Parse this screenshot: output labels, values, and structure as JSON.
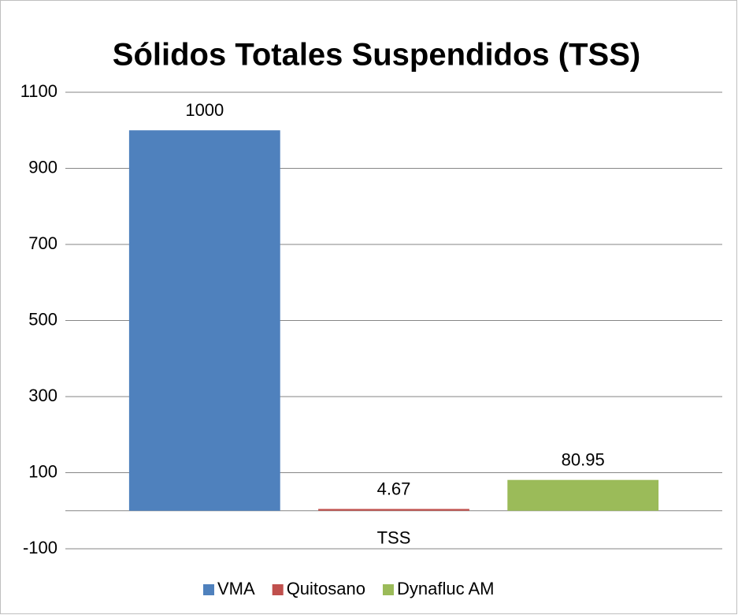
{
  "chart_data": {
    "type": "bar",
    "title": "Sólidos Totales Suspendidos (TSS)",
    "categories": [
      "TSS"
    ],
    "series": [
      {
        "name": "VMA",
        "color": "#4f81bd",
        "values": [
          1000
        ]
      },
      {
        "name": "Quitosano",
        "color": "#c0504d",
        "values": [
          4.67
        ]
      },
      {
        "name": "Dynafluc AM",
        "color": "#9bbb59",
        "values": [
          80.95
        ]
      }
    ],
    "ylim": [
      -100,
      1100
    ],
    "yticks": [
      -100,
      100,
      300,
      500,
      700,
      900,
      1100
    ],
    "grid": true,
    "legend": "bottom"
  }
}
